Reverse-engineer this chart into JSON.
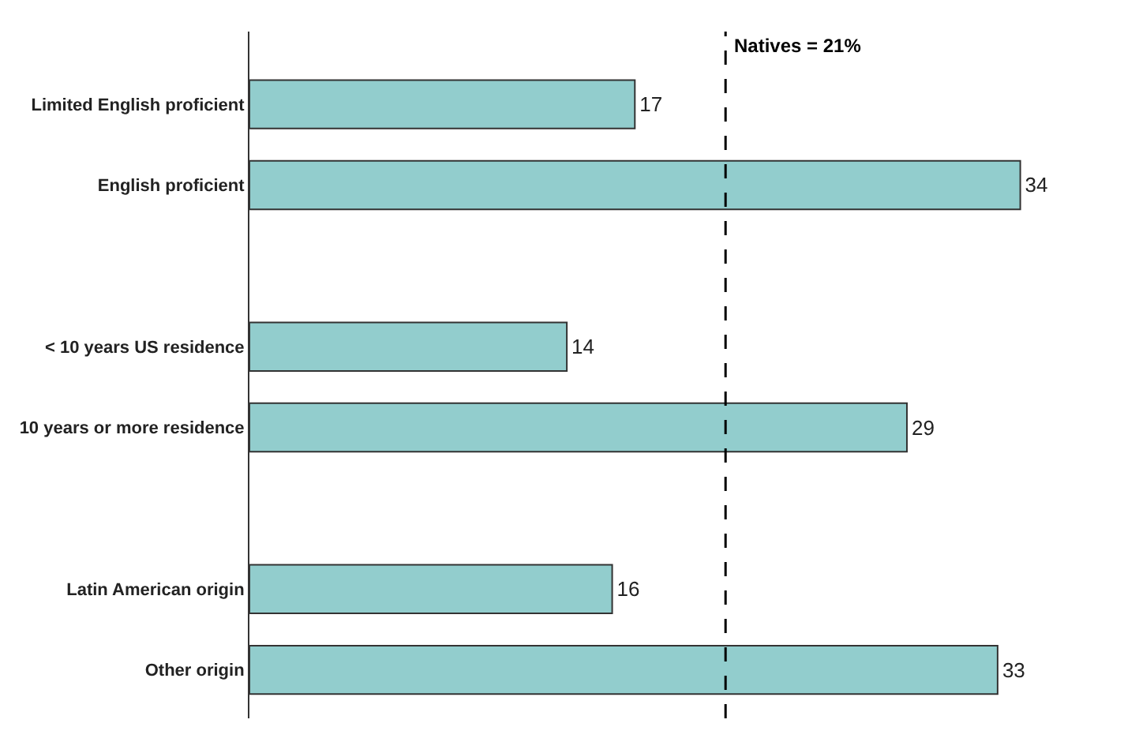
{
  "chart_data": {
    "type": "bar",
    "orientation": "horizontal",
    "categories": [
      "Limited English proficient",
      "English proficient",
      null,
      "< 10 years US residence",
      "10 years or more residence",
      null,
      "Latin American origin",
      "Other origin"
    ],
    "values": [
      17,
      34,
      null,
      14,
      29,
      null,
      16,
      33
    ],
    "color": "#92cdcd",
    "data_labels": true,
    "legend": false,
    "tick_labels": "y",
    "ref_lines": [
      {
        "axis": "x",
        "value": 21,
        "label": "Natives = 21%",
        "color": "#000000",
        "line_style": "dashed"
      }
    ]
  }
}
